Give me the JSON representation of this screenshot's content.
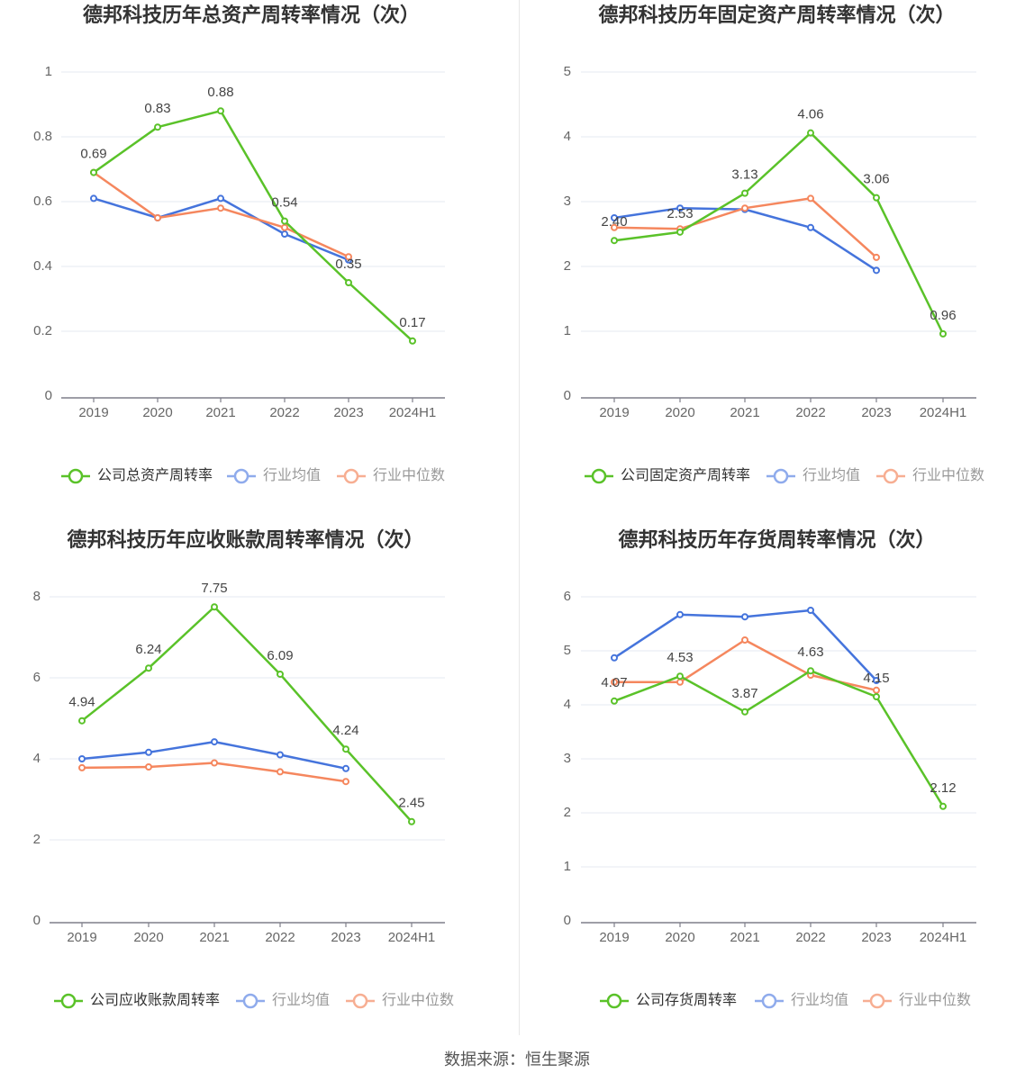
{
  "chart_data": [
    {
      "type": "line",
      "title": "德邦科技历年总资产周转率情况（次）",
      "categories": [
        "2019",
        "2020",
        "2021",
        "2022",
        "2023",
        "2024H1"
      ],
      "ylim": [
        0,
        1
      ],
      "yticks": [
        "0",
        "0.2",
        "0.4",
        "0.6",
        "0.8",
        "1"
      ],
      "ytick_values": [
        0,
        0.2,
        0.4,
        0.6,
        0.8,
        1
      ],
      "series": [
        {
          "name": "公司总资产周转率",
          "color": "#5ac229",
          "values": [
            0.69,
            0.83,
            0.88,
            0.54,
            0.35,
            0.17
          ],
          "labels": [
            "0.69",
            "0.83",
            "0.88",
            "0.54",
            "0.35",
            "0.17"
          ]
        },
        {
          "name": "行业均值",
          "color": "#4574dc",
          "values": [
            0.61,
            0.55,
            0.61,
            0.5,
            0.42,
            null
          ]
        },
        {
          "name": "行业中位数",
          "color": "#f5875e",
          "values": [
            0.69,
            0.55,
            0.58,
            0.52,
            0.43,
            null
          ]
        }
      ]
    },
    {
      "type": "line",
      "title": "德邦科技历年固定资产周转率情况（次）",
      "categories": [
        "2019",
        "2020",
        "2021",
        "2022",
        "2023",
        "2024H1"
      ],
      "ylim": [
        0,
        5
      ],
      "yticks": [
        "0",
        "1",
        "2",
        "3",
        "4",
        "5"
      ],
      "ytick_values": [
        0,
        1,
        2,
        3,
        4,
        5
      ],
      "series": [
        {
          "name": "公司固定资产周转率",
          "color": "#5ac229",
          "values": [
            2.4,
            2.53,
            3.13,
            4.06,
            3.06,
            0.96
          ],
          "labels": [
            "2.40",
            "2.53",
            "3.13",
            "4.06",
            "3.06",
            "0.96"
          ]
        },
        {
          "name": "行业均值",
          "color": "#4574dc",
          "values": [
            2.75,
            2.9,
            2.88,
            2.6,
            1.94,
            null
          ]
        },
        {
          "name": "行业中位数",
          "color": "#f5875e",
          "values": [
            2.6,
            2.58,
            2.9,
            3.05,
            2.14,
            null
          ]
        }
      ]
    },
    {
      "type": "line",
      "title": "德邦科技历年应收账款周转率情况（次）",
      "categories": [
        "2019",
        "2020",
        "2021",
        "2022",
        "2023",
        "2024H1"
      ],
      "ylim": [
        0,
        8
      ],
      "yticks": [
        "0",
        "2",
        "4",
        "6",
        "8"
      ],
      "ytick_values": [
        0,
        2,
        4,
        6,
        8
      ],
      "series": [
        {
          "name": "公司应收账款周转率",
          "color": "#5ac229",
          "values": [
            4.94,
            6.24,
            7.75,
            6.09,
            4.24,
            2.45
          ],
          "labels": [
            "4.94",
            "6.24",
            "7.75",
            "6.09",
            "4.24",
            "2.45"
          ]
        },
        {
          "name": "行业均值",
          "color": "#4574dc",
          "values": [
            4.0,
            4.16,
            4.42,
            4.1,
            3.76,
            null
          ]
        },
        {
          "name": "行业中位数",
          "color": "#f5875e",
          "values": [
            3.78,
            3.8,
            3.9,
            3.68,
            3.44,
            null
          ]
        }
      ]
    },
    {
      "type": "line",
      "title": "德邦科技历年存货周转率情况（次）",
      "categories": [
        "2019",
        "2020",
        "2021",
        "2022",
        "2023",
        "2024H1"
      ],
      "ylim": [
        0,
        6
      ],
      "yticks": [
        "0",
        "1",
        "2",
        "3",
        "4",
        "5",
        "6"
      ],
      "ytick_values": [
        0,
        1,
        2,
        3,
        4,
        5,
        6
      ],
      "series": [
        {
          "name": "公司存货周转率",
          "color": "#5ac229",
          "values": [
            4.07,
            4.53,
            3.87,
            4.63,
            4.15,
            2.12
          ],
          "labels": [
            "4.07",
            "4.53",
            "3.87",
            "4.63",
            "4.15",
            "2.12"
          ]
        },
        {
          "name": "行业均值",
          "color": "#4574dc",
          "values": [
            4.87,
            5.67,
            5.63,
            5.75,
            4.45,
            null
          ]
        },
        {
          "name": "行业中位数",
          "color": "#f5875e",
          "values": [
            4.42,
            4.42,
            5.2,
            4.55,
            4.27,
            null
          ]
        }
      ]
    }
  ],
  "legend_colors": {
    "company": "#5ac229",
    "mean": "#8fabec",
    "median": "#f7ae92"
  },
  "source": "数据来源：恒生聚源"
}
